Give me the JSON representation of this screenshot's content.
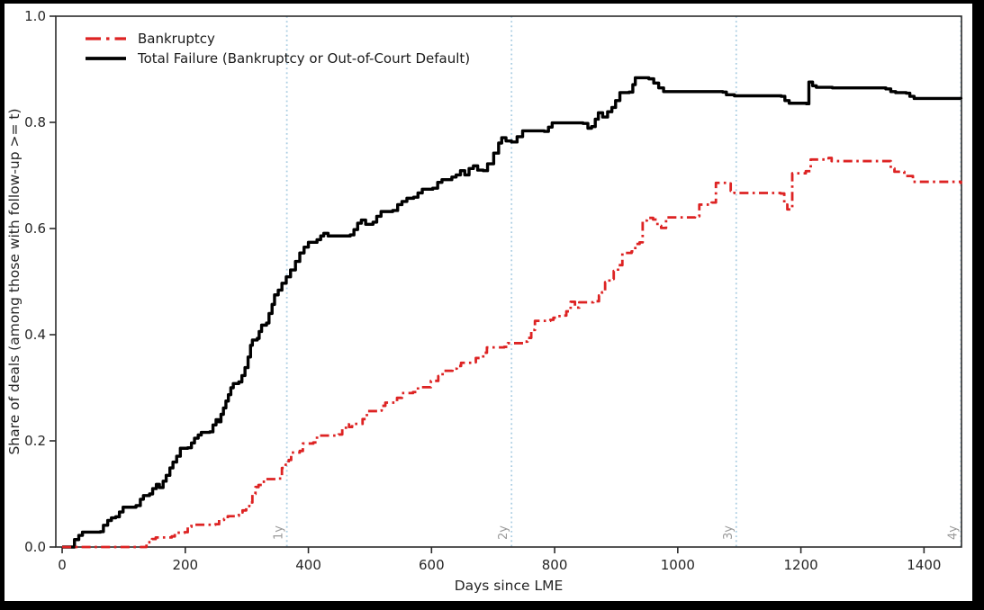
{
  "frame": {
    "border_color": "#000000",
    "panel_color": "#ffffff"
  },
  "chart_data": {
    "type": "line",
    "title": "",
    "xlabel": "Days since LME",
    "ylabel": "Share of deals (among those with follow-up >= t)",
    "xlim": [
      -10.3,
      1460.9
    ],
    "ylim": [
      0,
      1.0
    ],
    "x_ticks": [
      0,
      200,
      400,
      600,
      800,
      1000,
      1200,
      1400
    ],
    "y_ticks": [
      "0.0",
      "0.2",
      "0.4",
      "0.6",
      "0.8",
      "1.0"
    ],
    "grid": false,
    "legend_position": "upper-left",
    "axis_color": "#2b2b2b",
    "tick_label_color": "#262626",
    "reference_lines": [
      {
        "label": "1y",
        "x": 365
      },
      {
        "label": "2y",
        "x": 730
      },
      {
        "label": "3y",
        "x": 1095
      },
      {
        "label": "4y",
        "x": 1460
      }
    ],
    "reference_line_color": "#aacde2",
    "reference_label_color": "#999999",
    "series": [
      {
        "name": "Total Failure (Bankruptcy or Out-of-Court Default)",
        "color": "#000000",
        "style": "solid",
        "width": 3.4,
        "step": true,
        "points": [
          [
            0,
            0
          ],
          [
            13,
            0
          ],
          [
            20,
            0.014
          ],
          [
            27,
            0.022
          ],
          [
            33,
            0.028
          ],
          [
            62,
            0.029
          ],
          [
            67,
            0.041
          ],
          [
            74,
            0.05
          ],
          [
            80,
            0.055
          ],
          [
            87,
            0.057
          ],
          [
            93,
            0.066
          ],
          [
            99,
            0.075
          ],
          [
            120,
            0.078
          ],
          [
            127,
            0.09
          ],
          [
            132,
            0.097
          ],
          [
            142,
            0.1
          ],
          [
            147,
            0.11
          ],
          [
            153,
            0.118
          ],
          [
            158,
            0.112
          ],
          [
            164,
            0.124
          ],
          [
            169,
            0.135
          ],
          [
            175,
            0.149
          ],
          [
            180,
            0.16
          ],
          [
            186,
            0.171
          ],
          [
            192,
            0.186
          ],
          [
            204,
            0.187
          ],
          [
            210,
            0.196
          ],
          [
            215,
            0.205
          ],
          [
            221,
            0.211
          ],
          [
            226,
            0.216
          ],
          [
            240,
            0.217
          ],
          [
            245,
            0.23
          ],
          [
            250,
            0.24
          ],
          [
            254,
            0.236
          ],
          [
            258,
            0.25
          ],
          [
            262,
            0.262
          ],
          [
            266,
            0.275
          ],
          [
            270,
            0.287
          ],
          [
            274,
            0.3
          ],
          [
            278,
            0.308
          ],
          [
            287,
            0.311
          ],
          [
            292,
            0.323
          ],
          [
            297,
            0.338
          ],
          [
            302,
            0.358
          ],
          [
            306,
            0.38
          ],
          [
            309,
            0.39
          ],
          [
            317,
            0.393
          ],
          [
            320,
            0.406
          ],
          [
            324,
            0.418
          ],
          [
            332,
            0.422
          ],
          [
            336,
            0.44
          ],
          [
            341,
            0.457
          ],
          [
            345,
            0.475
          ],
          [
            351,
            0.484
          ],
          [
            357,
            0.497
          ],
          [
            364,
            0.509
          ],
          [
            371,
            0.522
          ],
          [
            379,
            0.538
          ],
          [
            386,
            0.554
          ],
          [
            393,
            0.565
          ],
          [
            400,
            0.574
          ],
          [
            414,
            0.579
          ],
          [
            420,
            0.586
          ],
          [
            425,
            0.591
          ],
          [
            432,
            0.586
          ],
          [
            468,
            0.588
          ],
          [
            474,
            0.598
          ],
          [
            480,
            0.61
          ],
          [
            486,
            0.616
          ],
          [
            493,
            0.608
          ],
          [
            505,
            0.612
          ],
          [
            511,
            0.623
          ],
          [
            518,
            0.632
          ],
          [
            537,
            0.634
          ],
          [
            545,
            0.645
          ],
          [
            552,
            0.651
          ],
          [
            560,
            0.657
          ],
          [
            571,
            0.659
          ],
          [
            578,
            0.667
          ],
          [
            585,
            0.674
          ],
          [
            602,
            0.676
          ],
          [
            610,
            0.687
          ],
          [
            617,
            0.692
          ],
          [
            633,
            0.697
          ],
          [
            640,
            0.701
          ],
          [
            647,
            0.709
          ],
          [
            654,
            0.701
          ],
          [
            661,
            0.713
          ],
          [
            668,
            0.718
          ],
          [
            675,
            0.71
          ],
          [
            684,
            0.709
          ],
          [
            691,
            0.722
          ],
          [
            701,
            0.742
          ],
          [
            709,
            0.761
          ],
          [
            714,
            0.771
          ],
          [
            721,
            0.765
          ],
          [
            730,
            0.763
          ],
          [
            739,
            0.773
          ],
          [
            748,
            0.784
          ],
          [
            783,
            0.783
          ],
          [
            790,
            0.791
          ],
          [
            796,
            0.799
          ],
          [
            846,
            0.798
          ],
          [
            854,
            0.789
          ],
          [
            860,
            0.792
          ],
          [
            866,
            0.806
          ],
          [
            871,
            0.818
          ],
          [
            878,
            0.81
          ],
          [
            886,
            0.82
          ],
          [
            893,
            0.828
          ],
          [
            899,
            0.841
          ],
          [
            906,
            0.856
          ],
          [
            921,
            0.857
          ],
          [
            927,
            0.871
          ],
          [
            931,
            0.884
          ],
          [
            953,
            0.882
          ],
          [
            961,
            0.874
          ],
          [
            969,
            0.865
          ],
          [
            977,
            0.858
          ],
          [
            1073,
            0.857
          ],
          [
            1079,
            0.852
          ],
          [
            1092,
            0.85
          ],
          [
            1168,
            0.849
          ],
          [
            1174,
            0.841
          ],
          [
            1181,
            0.836
          ],
          [
            1209,
            0.835
          ],
          [
            1213,
            0.876
          ],
          [
            1219,
            0.869
          ],
          [
            1225,
            0.866
          ],
          [
            1251,
            0.865
          ],
          [
            1338,
            0.863
          ],
          [
            1346,
            0.858
          ],
          [
            1354,
            0.856
          ],
          [
            1371,
            0.855
          ],
          [
            1377,
            0.849
          ],
          [
            1384,
            0.845
          ],
          [
            1460,
            0.844
          ]
        ]
      },
      {
        "name": "Bankruptcy",
        "color": "#dd2323",
        "style": "dashdot",
        "width": 2.8,
        "step": true,
        "points": [
          [
            0,
            0
          ],
          [
            131,
            0
          ],
          [
            137,
            0.009
          ],
          [
            146,
            0.015
          ],
          [
            152,
            0.018
          ],
          [
            178,
            0.02
          ],
          [
            183,
            0.027
          ],
          [
            199,
            0.028
          ],
          [
            204,
            0.038
          ],
          [
            210,
            0.042
          ],
          [
            249,
            0.043
          ],
          [
            255,
            0.051
          ],
          [
            263,
            0.053
          ],
          [
            269,
            0.058
          ],
          [
            281,
            0.059
          ],
          [
            287,
            0.065
          ],
          [
            293,
            0.069
          ],
          [
            299,
            0.077
          ],
          [
            304,
            0.084
          ],
          [
            309,
            0.1
          ],
          [
            314,
            0.113
          ],
          [
            319,
            0.117
          ],
          [
            325,
            0.123
          ],
          [
            331,
            0.128
          ],
          [
            352,
            0.129
          ],
          [
            357,
            0.149
          ],
          [
            363,
            0.155
          ],
          [
            368,
            0.164
          ],
          [
            372,
            0.178
          ],
          [
            386,
            0.181
          ],
          [
            391,
            0.195
          ],
          [
            408,
            0.197
          ],
          [
            414,
            0.21
          ],
          [
            449,
            0.212
          ],
          [
            455,
            0.222
          ],
          [
            461,
            0.231
          ],
          [
            466,
            0.226
          ],
          [
            471,
            0.232
          ],
          [
            488,
            0.241
          ],
          [
            495,
            0.256
          ],
          [
            512,
            0.257
          ],
          [
            519,
            0.266
          ],
          [
            525,
            0.272
          ],
          [
            544,
            0.281
          ],
          [
            552,
            0.29
          ],
          [
            570,
            0.292
          ],
          [
            578,
            0.301
          ],
          [
            599,
            0.313
          ],
          [
            611,
            0.322
          ],
          [
            618,
            0.332
          ],
          [
            634,
            0.336
          ],
          [
            641,
            0.341
          ],
          [
            648,
            0.347
          ],
          [
            665,
            0.348
          ],
          [
            672,
            0.356
          ],
          [
            684,
            0.366
          ],
          [
            690,
            0.376
          ],
          [
            718,
            0.377
          ],
          [
            724,
            0.384
          ],
          [
            750,
            0.387
          ],
          [
            756,
            0.394
          ],
          [
            762,
            0.409
          ],
          [
            768,
            0.426
          ],
          [
            793,
            0.428
          ],
          [
            798,
            0.432
          ],
          [
            803,
            0.435
          ],
          [
            814,
            0.436
          ],
          [
            819,
            0.444
          ],
          [
            826,
            0.462
          ],
          [
            833,
            0.451
          ],
          [
            840,
            0.461
          ],
          [
            863,
            0.463
          ],
          [
            872,
            0.474
          ],
          [
            877,
            0.48
          ],
          [
            882,
            0.499
          ],
          [
            889,
            0.505
          ],
          [
            896,
            0.52
          ],
          [
            903,
            0.531
          ],
          [
            910,
            0.554
          ],
          [
            925,
            0.557
          ],
          [
            931,
            0.571
          ],
          [
            938,
            0.574
          ],
          [
            943,
            0.615
          ],
          [
            950,
            0.62
          ],
          [
            960,
            0.617
          ],
          [
            967,
            0.605
          ],
          [
            973,
            0.601
          ],
          [
            981,
            0.621
          ],
          [
            1028,
            0.623
          ],
          [
            1035,
            0.645
          ],
          [
            1055,
            0.649
          ],
          [
            1062,
            0.686
          ],
          [
            1080,
            0.685
          ],
          [
            1086,
            0.671
          ],
          [
            1092,
            0.667
          ],
          [
            1167,
            0.666
          ],
          [
            1173,
            0.645
          ],
          [
            1178,
            0.636
          ],
          [
            1186,
            0.704
          ],
          [
            1208,
            0.708
          ],
          [
            1216,
            0.73
          ],
          [
            1245,
            0.733
          ],
          [
            1250,
            0.727
          ],
          [
            1318,
            0.727
          ],
          [
            1346,
            0.713
          ],
          [
            1352,
            0.707
          ],
          [
            1368,
            0.699
          ],
          [
            1382,
            0.688
          ],
          [
            1460,
            0.684
          ]
        ]
      }
    ],
    "legend_order": [
      "Bankruptcy",
      "Total Failure (Bankruptcy or Out-of-Court Default)"
    ]
  }
}
